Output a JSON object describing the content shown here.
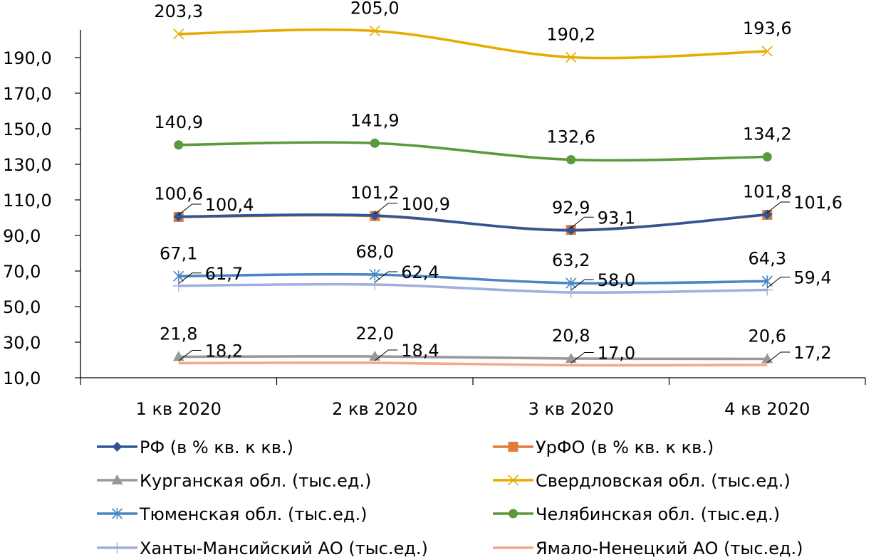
{
  "chart_data": {
    "type": "line",
    "title": "",
    "xlabel": "",
    "ylabel": "",
    "categories": [
      "1 кв 2020",
      "2 кв 2020",
      "3 кв 2020",
      "4 кв 2020"
    ],
    "ylim": [
      10,
      210
    ],
    "yticks": [
      "10,0",
      "30,0",
      "50,0",
      "70,0",
      "90,0",
      "110,0",
      "130,0",
      "150,0",
      "170,0",
      "190,0"
    ],
    "grid": false,
    "legend_position": "bottom",
    "series": [
      {
        "name": "РФ  (в % кв. к кв.)",
        "values": [
          100.6,
          101.2,
          92.9,
          101.8
        ],
        "labels": [
          "100,6",
          "101,2",
          "92,9",
          "101,8"
        ],
        "color": "#2f5597",
        "marker": "diamond"
      },
      {
        "name": "УрФО (в % кв. к кв.)",
        "values": [
          100.4,
          100.9,
          93.1,
          101.6
        ],
        "labels": [
          "100,4",
          "100,9",
          "93,1",
          "101,6"
        ],
        "color": "#e07b39",
        "marker": "square"
      },
      {
        "name": "Курганская обл. (тыс.ед.)",
        "values": [
          21.8,
          22.0,
          20.8,
          20.6
        ],
        "labels": [
          "21,8",
          "22,0",
          "20,8",
          "20,6"
        ],
        "color": "#999999",
        "marker": "triangle"
      },
      {
        "name": "Свердловская обл. (тыс.ед.)",
        "values": [
          203.3,
          205.0,
          190.2,
          193.6
        ],
        "labels": [
          "203,3",
          "205,0",
          "190,2",
          "193,6"
        ],
        "color": "#e6ac00",
        "marker": "x"
      },
      {
        "name": "Тюменская обл. (тыс.ед.)",
        "values": [
          67.1,
          68.0,
          63.2,
          64.3
        ],
        "labels": [
          "67,1",
          "68,0",
          "63,2",
          "64,3"
        ],
        "color": "#4a86c5",
        "marker": "star"
      },
      {
        "name": "Челябинская обл. (тыс.ед.)",
        "values": [
          140.9,
          141.9,
          132.6,
          134.2
        ],
        "labels": [
          "140,9",
          "141,9",
          "132,6",
          "134,2"
        ],
        "color": "#5a9a3c",
        "marker": "circle"
      },
      {
        "name": "Ханты-Мансийский АО (тыс.ед.)",
        "values": [
          61.7,
          62.4,
          58.0,
          59.4
        ],
        "labels": [
          "61,7",
          "62,4",
          "58,0",
          "59,4"
        ],
        "color": "#9fb0dd",
        "marker": "plus"
      },
      {
        "name": "Ямало-Ненецкий АО (тыс.ед.)",
        "values": [
          18.2,
          18.4,
          17.0,
          17.2
        ],
        "labels": [
          "18,2",
          "18,4",
          "17,0",
          "17,2"
        ],
        "color": "#f2a88a",
        "marker": "none"
      }
    ]
  }
}
